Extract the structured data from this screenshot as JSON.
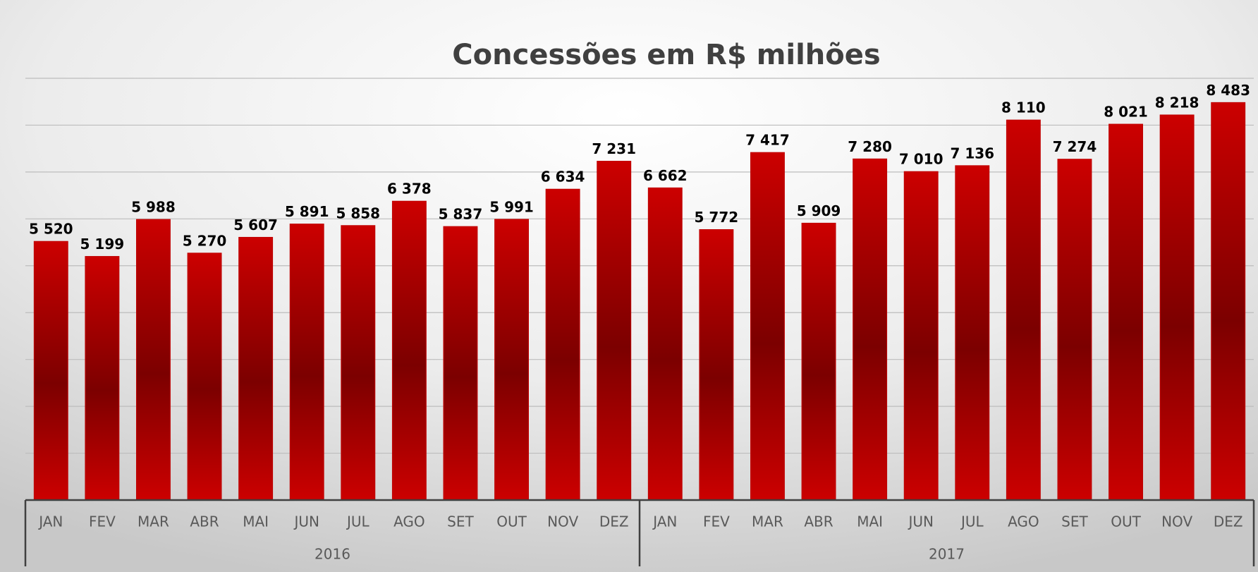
{
  "chart_data": {
    "type": "bar",
    "title": "Concessões em R$ milhões",
    "categories": [
      "JAN",
      "FEV",
      "MAR",
      "ABR",
      "MAI",
      "JUN",
      "JUL",
      "AGO",
      "SET",
      "OUT",
      "NOV",
      "DEZ",
      "JAN",
      "FEV",
      "MAR",
      "ABR",
      "MAI",
      "JUN",
      "JUL",
      "AGO",
      "SET",
      "OUT",
      "NOV",
      "DEZ"
    ],
    "groups": [
      "2016",
      "2017"
    ],
    "values": [
      5520,
      5199,
      5988,
      5270,
      5607,
      5891,
      5858,
      6378,
      5837,
      5991,
      6634,
      7231,
      6662,
      5772,
      7417,
      5909,
      7280,
      7010,
      7136,
      8110,
      7274,
      8021,
      8218,
      8483
    ],
    "value_labels": [
      "5 520",
      "5 199",
      "5 988",
      "5 270",
      "5 607",
      "5 891",
      "5 858",
      "6 378",
      "5 837",
      "5 991",
      "6 634",
      "7 231",
      "6 662",
      "5 772",
      "7 417",
      "5 909",
      "7 280",
      "7 010",
      "7 136",
      "8 110",
      "7 274",
      "8 021",
      "8 218",
      "8 483"
    ],
    "color": "#c00000",
    "ylim": [
      0,
      9000
    ],
    "yticks": [
      0,
      1000,
      2000,
      3000,
      4000,
      5000,
      6000,
      7000,
      8000,
      9000
    ],
    "grid": true
  }
}
